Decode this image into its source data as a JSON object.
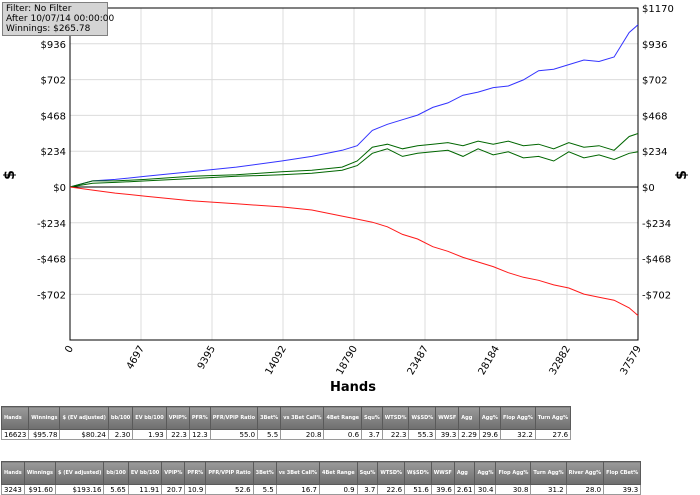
{
  "filter_box": {
    "line1": "Filter: No Filter",
    "line2": "After 10/07/14 00:00:00",
    "line3": "Winnings: $265.78"
  },
  "chart_data": {
    "type": "line",
    "xlabel": "Hands",
    "ylabel": "$",
    "xlim": [
      0,
      37579
    ],
    "ylim": [
      -1000,
      1170
    ],
    "x_ticks": [
      0,
      4697,
      9395,
      14092,
      18790,
      23487,
      28184,
      32882,
      37579
    ],
    "x_tick_labels": [
      "0",
      "4697",
      "9395",
      "14092",
      "18790",
      "23487",
      "28184",
      "32882",
      "37579"
    ],
    "y_ticks": [
      1170,
      936,
      702,
      468,
      234,
      0,
      -234,
      -468,
      -702
    ],
    "y_tick_labels": [
      "$1170",
      "$936",
      "$702",
      "$468",
      "$234",
      "$0",
      "-$234",
      "-$468",
      "-$702"
    ],
    "grid": true,
    "series": [
      {
        "color": "#3333ff",
        "x": [
          0,
          1500,
          3000,
          5000,
          8000,
          11000,
          14000,
          16000,
          18000,
          19000,
          20000,
          21000,
          22000,
          23000,
          24000,
          25000,
          26000,
          27000,
          28000,
          29000,
          30000,
          31000,
          32000,
          33000,
          34000,
          35000,
          36000,
          37000,
          37579
        ],
        "y": [
          0,
          40,
          50,
          70,
          100,
          130,
          170,
          200,
          240,
          270,
          370,
          410,
          440,
          470,
          520,
          550,
          600,
          620,
          650,
          660,
          700,
          760,
          770,
          800,
          830,
          820,
          850,
          1010,
          1060
        ]
      },
      {
        "color": "#006600",
        "x": [
          0,
          1500,
          3000,
          5000,
          8000,
          11000,
          14000,
          16000,
          18000,
          19000,
          20000,
          21000,
          22000,
          23000,
          24000,
          25000,
          26000,
          27000,
          28000,
          29000,
          30000,
          31000,
          32000,
          33000,
          34000,
          35000,
          36000,
          37000,
          37579
        ],
        "y": [
          0,
          40,
          40,
          50,
          70,
          80,
          100,
          110,
          130,
          170,
          260,
          280,
          250,
          270,
          280,
          290,
          270,
          300,
          280,
          300,
          270,
          280,
          250,
          290,
          260,
          270,
          240,
          330,
          350
        ]
      },
      {
        "color": "#006600",
        "x": [
          0,
          1500,
          3000,
          5000,
          8000,
          11000,
          14000,
          16000,
          18000,
          19000,
          20000,
          21000,
          22000,
          23000,
          24000,
          25000,
          26000,
          27000,
          28000,
          29000,
          30000,
          31000,
          32000,
          33000,
          34000,
          35000,
          36000,
          37000,
          37579
        ],
        "y": [
          0,
          25,
          30,
          40,
          55,
          70,
          80,
          90,
          110,
          140,
          220,
          250,
          200,
          220,
          230,
          240,
          200,
          250,
          210,
          230,
          190,
          200,
          170,
          230,
          190,
          210,
          180,
          220,
          230
        ]
      },
      {
        "color": "#ff1a1a",
        "x": [
          0,
          1500,
          3000,
          5000,
          8000,
          11000,
          14000,
          16000,
          18000,
          19000,
          20000,
          21000,
          22000,
          23000,
          24000,
          25000,
          26000,
          27000,
          28000,
          29000,
          30000,
          31000,
          32000,
          33000,
          34000,
          35000,
          36000,
          37000,
          37579
        ],
        "y": [
          0,
          -20,
          -40,
          -60,
          -90,
          -110,
          -130,
          -150,
          -190,
          -210,
          -230,
          -260,
          -310,
          -340,
          -390,
          -420,
          -460,
          -490,
          -520,
          -560,
          -590,
          -610,
          -640,
          -660,
          -700,
          -720,
          -740,
          -790,
          -840
        ]
      }
    ]
  },
  "table1": {
    "headers": [
      "Hands",
      "Winnings",
      "$ (EV adjusted)",
      "bb/100",
      "EV bb/100",
      "VPIP%",
      "PFR%",
      "PFR/VPIP Ratio",
      "3Bet%",
      "vs 3Bet Call%",
      "4Bet Range",
      "Squ%",
      "WTSD%",
      "W$SD%",
      "WWSF",
      "Agg",
      "Agg%",
      "Flop Agg%",
      "Turn Agg%"
    ],
    "row": [
      "16623",
      "$95.78",
      "$80.24",
      "2.30",
      "1.93",
      "22.3",
      "12.3",
      "55.0",
      "5.5",
      "20.8",
      "0.6",
      "3.7",
      "22.3",
      "55.3",
      "39.3",
      "2.29",
      "29.6",
      "32.2",
      "27.6"
    ]
  },
  "table2": {
    "headers": [
      "Hands",
      "Winnings",
      "$ (EV adjusted)",
      "bb/100",
      "EV bb/100",
      "VPIP%",
      "PFR%",
      "PFR/VPIP Ratio",
      "3Bet%",
      "vs 3Bet Call%",
      "4Bet Range",
      "Squ%",
      "WTSD%",
      "W$SD%",
      "WWSF",
      "Agg",
      "Agg%",
      "Flop Agg%",
      "Turn Agg%",
      "River Agg%",
      "Flop CBet%"
    ],
    "row": [
      "3243",
      "$91.60",
      "$193.16",
      "5.65",
      "11.91",
      "20.7",
      "10.9",
      "52.6",
      "5.5",
      "16.7",
      "0.9",
      "3.7",
      "22.6",
      "51.6",
      "39.6",
      "2.61",
      "30.4",
      "30.8",
      "31.2",
      "28.0",
      "39.3"
    ]
  }
}
